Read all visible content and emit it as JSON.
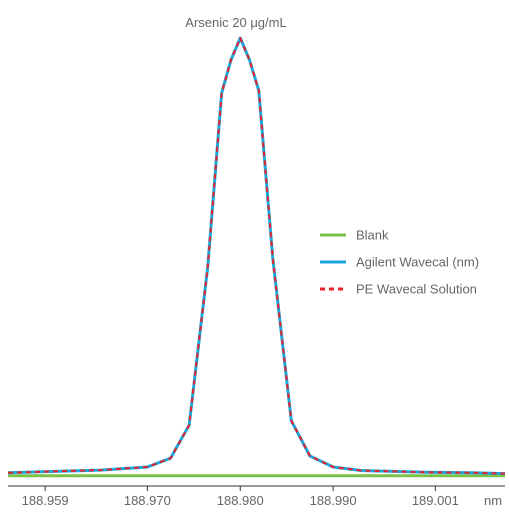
{
  "chart_data": {
    "type": "line",
    "title": "Arsenic 20 μg/mL",
    "xlabel": "",
    "ylabel": "",
    "x_unit_label": "nm",
    "xlim": [
      188.955,
      189.0085
    ],
    "ylim": [
      0,
      1.0
    ],
    "grid": false,
    "legend_position": "right",
    "x_ticks": [
      188.959,
      188.97,
      188.98,
      188.99,
      189.001
    ],
    "x_tick_labels": [
      "188.959",
      "188.970",
      "188.980",
      "188.990",
      "189.001"
    ],
    "colors": {
      "blank": "#7cc14a",
      "agilent": "#1aa7dc",
      "pe": "#e8202a",
      "axis": "#333333",
      "text": "#666666"
    },
    "series": [
      {
        "name": "Blank",
        "color": "#7cc14a",
        "dash": "solid",
        "x": [
          188.955,
          189.0085
        ],
        "y": [
          0.005,
          0.005
        ]
      },
      {
        "name": "Agilent Wavecal (nm)",
        "color": "#1aa7dc",
        "dash": "solid",
        "x": [
          188.955,
          188.96,
          188.965,
          188.97,
          188.9725,
          188.9745,
          188.9765,
          188.978,
          188.979,
          188.98,
          188.981,
          188.982,
          188.9835,
          188.9855,
          188.9875,
          188.99,
          188.993,
          188.9965,
          189.0,
          189.005,
          189.0085
        ],
        "y": [
          0.012,
          0.015,
          0.018,
          0.025,
          0.045,
          0.12,
          0.48,
          0.875,
          0.95,
          1.0,
          0.95,
          0.88,
          0.5,
          0.13,
          0.05,
          0.025,
          0.017,
          0.015,
          0.013,
          0.012,
          0.01
        ]
      },
      {
        "name": "PE Wavecal Solution",
        "color": "#e8202a",
        "dash": "dashed",
        "x": [
          188.955,
          188.96,
          188.965,
          188.97,
          188.9725,
          188.9745,
          188.9765,
          188.978,
          188.979,
          188.98,
          188.981,
          188.982,
          188.9835,
          188.9855,
          188.9875,
          188.99,
          188.993,
          188.9965,
          189.0,
          189.005,
          189.0085
        ],
        "y": [
          0.012,
          0.015,
          0.018,
          0.025,
          0.045,
          0.12,
          0.48,
          0.875,
          0.95,
          1.0,
          0.95,
          0.88,
          0.5,
          0.13,
          0.05,
          0.025,
          0.017,
          0.015,
          0.013,
          0.012,
          0.01
        ]
      }
    ]
  }
}
